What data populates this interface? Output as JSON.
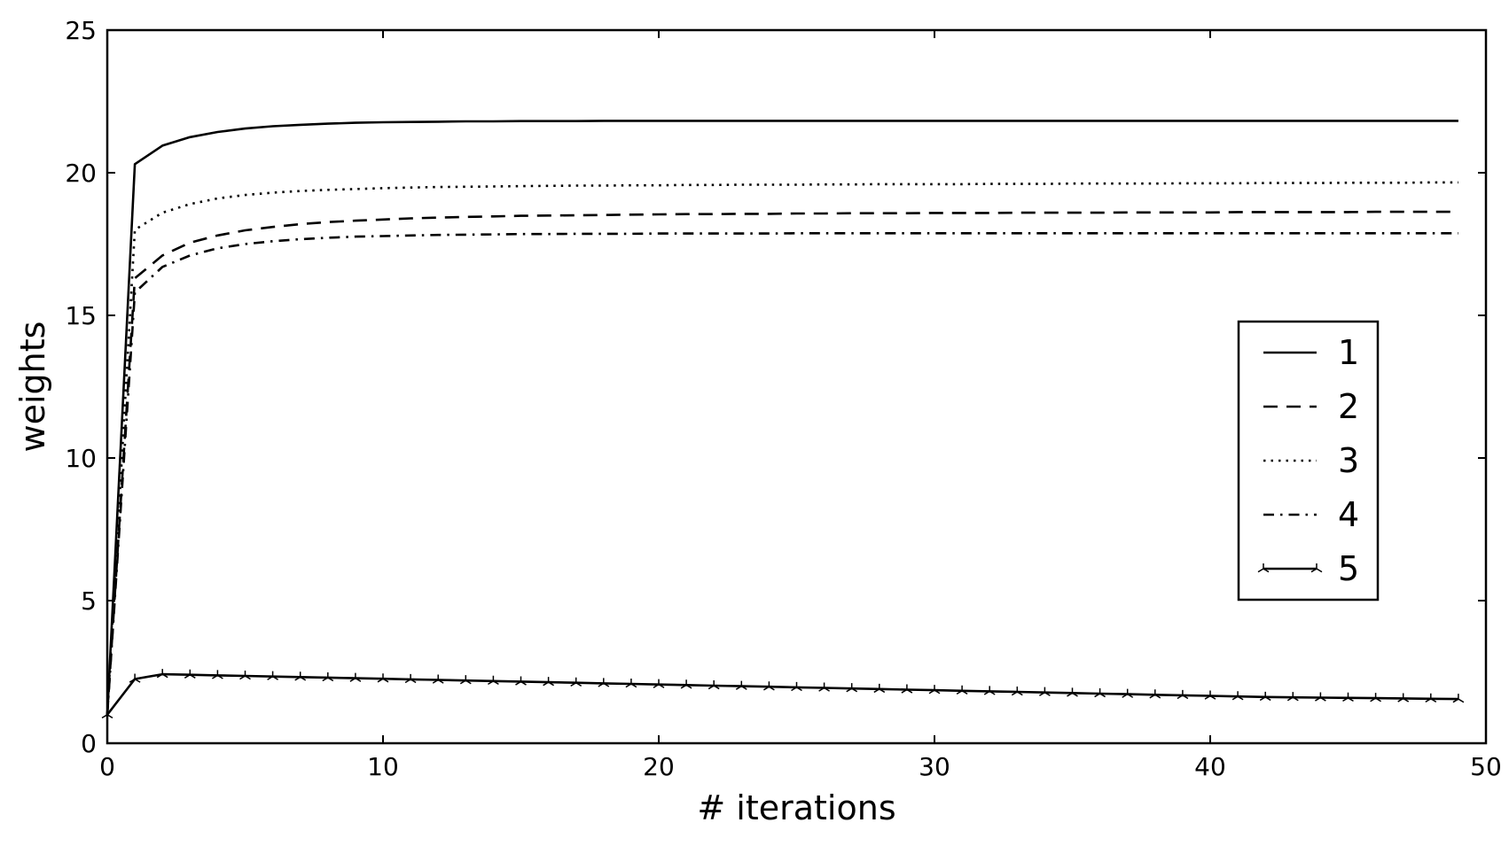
{
  "chart_data": {
    "type": "line",
    "title": "",
    "xlabel": "# iterations",
    "ylabel": "weights",
    "xlim": [
      0,
      50
    ],
    "ylim": [
      0,
      25
    ],
    "xticks": [
      0,
      10,
      20,
      30,
      40,
      50
    ],
    "yticks": [
      0,
      5,
      10,
      15,
      20,
      25
    ],
    "x": [
      0,
      1,
      2,
      3,
      4,
      5,
      6,
      7,
      8,
      9,
      10,
      11,
      12,
      13,
      14,
      15,
      16,
      17,
      18,
      19,
      20,
      21,
      22,
      23,
      24,
      25,
      26,
      27,
      28,
      29,
      30,
      31,
      32,
      33,
      34,
      35,
      36,
      37,
      38,
      39,
      40,
      41,
      42,
      43,
      44,
      45,
      46,
      47,
      48,
      49
    ],
    "legend_position": "center-right",
    "grid": false,
    "series": [
      {
        "name": "1",
        "line_style": "solid",
        "marker": "none",
        "values": [
          1.0,
          20.3,
          20.95,
          21.25,
          21.43,
          21.55,
          21.63,
          21.68,
          21.72,
          21.75,
          21.77,
          21.78,
          21.79,
          21.8,
          21.8,
          21.81,
          21.81,
          21.81,
          21.82,
          21.82,
          21.82,
          21.82,
          21.82,
          21.82,
          21.82,
          21.82,
          21.82,
          21.82,
          21.82,
          21.82,
          21.82,
          21.82,
          21.82,
          21.82,
          21.82,
          21.82,
          21.82,
          21.82,
          21.82,
          21.82,
          21.82,
          21.82,
          21.82,
          21.82,
          21.82,
          21.82,
          21.82,
          21.82,
          21.82,
          21.82
        ]
      },
      {
        "name": "2",
        "line_style": "dashed",
        "marker": "none",
        "values": [
          1.0,
          16.3,
          17.1,
          17.55,
          17.8,
          17.98,
          18.1,
          18.2,
          18.27,
          18.32,
          18.36,
          18.4,
          18.43,
          18.45,
          18.47,
          18.49,
          18.5,
          18.51,
          18.52,
          18.53,
          18.54,
          18.55,
          18.55,
          18.56,
          18.56,
          18.57,
          18.57,
          18.58,
          18.58,
          18.58,
          18.59,
          18.59,
          18.59,
          18.6,
          18.6,
          18.6,
          18.6,
          18.61,
          18.61,
          18.61,
          18.61,
          18.62,
          18.62,
          18.62,
          18.62,
          18.62,
          18.63,
          18.63,
          18.63,
          18.63
        ]
      },
      {
        "name": "3",
        "line_style": "dotted",
        "marker": "none",
        "values": [
          1.0,
          18.0,
          18.6,
          18.9,
          19.1,
          19.22,
          19.3,
          19.36,
          19.4,
          19.43,
          19.46,
          19.48,
          19.5,
          19.51,
          19.52,
          19.53,
          19.54,
          19.55,
          19.55,
          19.56,
          19.56,
          19.57,
          19.57,
          19.58,
          19.58,
          19.58,
          19.59,
          19.59,
          19.6,
          19.6,
          19.6,
          19.6,
          19.61,
          19.61,
          19.61,
          19.62,
          19.62,
          19.62,
          19.62,
          19.63,
          19.63,
          19.63,
          19.64,
          19.64,
          19.64,
          19.65,
          19.65,
          19.65,
          19.66,
          19.66
        ]
      },
      {
        "name": "4",
        "line_style": "dashdot",
        "marker": "none",
        "values": [
          1.0,
          15.8,
          16.7,
          17.1,
          17.35,
          17.5,
          17.6,
          17.67,
          17.72,
          17.76,
          17.78,
          17.8,
          17.82,
          17.83,
          17.84,
          17.85,
          17.85,
          17.86,
          17.86,
          17.86,
          17.87,
          17.87,
          17.87,
          17.87,
          17.87,
          17.88,
          17.88,
          17.88,
          17.88,
          17.88,
          17.88,
          17.88,
          17.88,
          17.88,
          17.88,
          17.88,
          17.88,
          17.88,
          17.88,
          17.88,
          17.88,
          17.88,
          17.88,
          17.88,
          17.88,
          17.88,
          17.88,
          17.88,
          17.88,
          17.88
        ]
      },
      {
        "name": "5",
        "line_style": "solid",
        "marker": "tri",
        "values": [
          1.0,
          2.25,
          2.42,
          2.4,
          2.38,
          2.36,
          2.34,
          2.32,
          2.3,
          2.28,
          2.26,
          2.24,
          2.22,
          2.2,
          2.18,
          2.16,
          2.14,
          2.12,
          2.1,
          2.08,
          2.06,
          2.04,
          2.02,
          2.0,
          1.98,
          1.96,
          1.94,
          1.92,
          1.9,
          1.88,
          1.86,
          1.84,
          1.82,
          1.8,
          1.78,
          1.76,
          1.74,
          1.72,
          1.7,
          1.68,
          1.66,
          1.64,
          1.62,
          1.61,
          1.6,
          1.59,
          1.58,
          1.57,
          1.56,
          1.55
        ]
      }
    ]
  }
}
